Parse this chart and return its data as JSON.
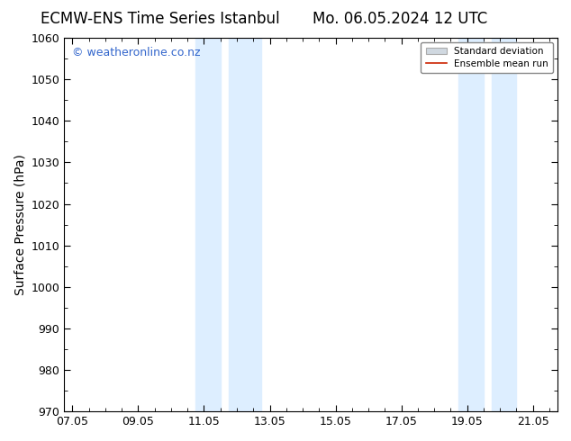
{
  "title_left": "ECMW-ENS Time Series Istanbul",
  "title_right": "Mo. 06.05.2024 12 UTC",
  "ylabel": "Surface Pressure (hPa)",
  "xlabel": "",
  "ylim": [
    970,
    1060
  ],
  "yticks_major": [
    970,
    980,
    990,
    1000,
    1010,
    1020,
    1030,
    1040,
    1050,
    1060
  ],
  "xtick_labels": [
    "07.05",
    "09.05",
    "11.05",
    "13.05",
    "15.05",
    "17.05",
    "19.05",
    "21.05"
  ],
  "xtick_positions": [
    0,
    2,
    4,
    6,
    8,
    10,
    12,
    14
  ],
  "xmin": -0.25,
  "xmax": 14.75,
  "bg_color": "#ffffff",
  "plot_bg_color": "#ffffff",
  "shaded_bands": [
    {
      "xstart": 3.75,
      "xend": 4.5
    },
    {
      "xstart": 4.75,
      "xend": 5.75
    },
    {
      "xstart": 11.75,
      "xend": 12.5
    },
    {
      "xstart": 12.75,
      "xend": 13.5
    }
  ],
  "shaded_color": "#ddeeff",
  "watermark_text": "© weatheronline.co.nz",
  "watermark_color": "#3366cc",
  "legend_std_label": "Standard deviation",
  "legend_mean_label": "Ensemble mean run",
  "std_color": "#d0d8e0",
  "mean_color": "#cc2200",
  "title_fontsize": 12,
  "tick_fontsize": 9,
  "ylabel_fontsize": 10,
  "watermark_fontsize": 9
}
